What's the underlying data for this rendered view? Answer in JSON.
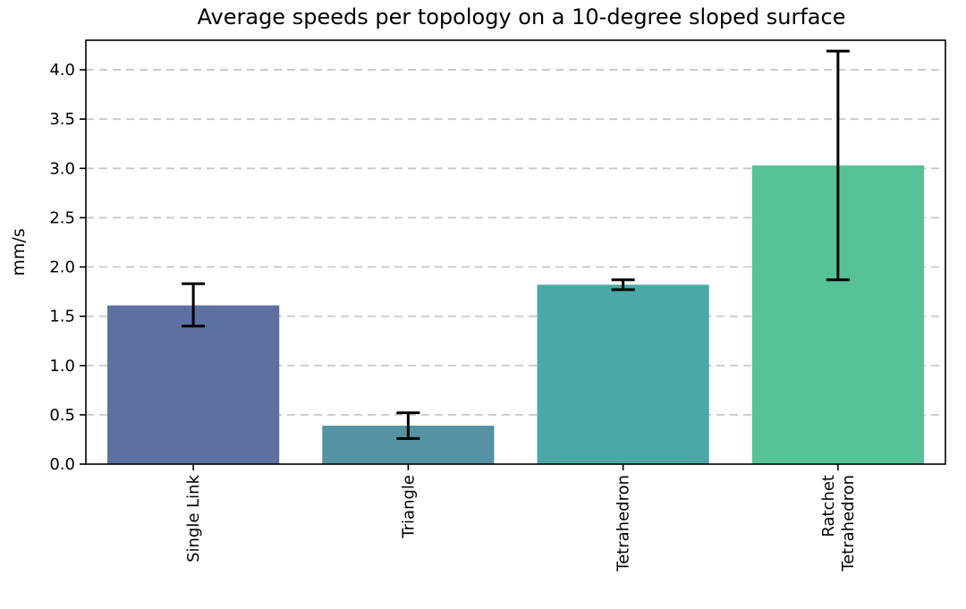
{
  "chart_data": {
    "type": "bar",
    "title": "Average speeds per topology on a 10-degree sloped surface",
    "xlabel": "",
    "ylabel": "mm/s",
    "categories": [
      [
        "Single Link"
      ],
      [
        "Triangle"
      ],
      [
        "Tetrahedron"
      ],
      [
        "Ratchet",
        "Tetrahedron"
      ]
    ],
    "values": [
      1.61,
      0.39,
      1.82,
      3.03
    ],
    "error_low": [
      1.4,
      0.26,
      1.77,
      1.87
    ],
    "error_high": [
      1.83,
      0.52,
      1.87,
      4.19
    ],
    "colors": [
      "#5c71a2",
      "#5593a4",
      "#4aa8a6",
      "#57c298"
    ],
    "ylim": [
      0,
      4.3
    ],
    "yticks": [
      "0.0",
      "0.5",
      "1.0",
      "1.5",
      "2.0",
      "2.5",
      "3.0",
      "3.5",
      "4.0"
    ],
    "grid": "horizontal dashed",
    "legend": "none"
  }
}
